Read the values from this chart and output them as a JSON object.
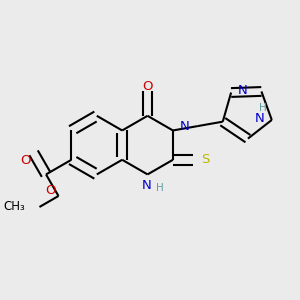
{
  "bg_color": "#ebebeb",
  "bond_color": "#000000",
  "bond_width": 1.5,
  "atoms": {
    "N_blue": "#0000cc",
    "O_red": "#cc0000",
    "S_yellow": "#b8b800",
    "H_teal": "#5f9ea0"
  },
  "font_size_atom": 9.5,
  "font_size_small": 7.5,
  "fig_width": 3.0,
  "fig_height": 3.0,
  "dpi": 100,
  "xlim": [
    0,
    3.0
  ],
  "ylim": [
    0,
    3.0
  ]
}
